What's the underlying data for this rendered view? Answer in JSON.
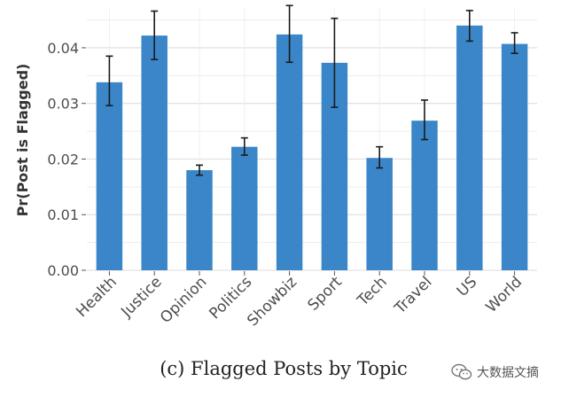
{
  "chart_data": {
    "type": "bar",
    "title": "",
    "xlabel": "",
    "ylabel": "Pr(Post is Flagged)",
    "categories": [
      "Health",
      "Justice",
      "Opinion",
      "Politics",
      "Showbiz",
      "Sport",
      "Tech",
      "Travel",
      "US",
      "World"
    ],
    "values": [
      0.0338,
      0.0422,
      0.018,
      0.0222,
      0.0424,
      0.0373,
      0.0202,
      0.0269,
      0.044,
      0.0407
    ],
    "error_low": [
      0.0296,
      0.0379,
      0.0171,
      0.0207,
      0.0374,
      0.0293,
      0.0184,
      0.0235,
      0.0412,
      0.039
    ],
    "error_high": [
      0.0385,
      0.0466,
      0.0189,
      0.0238,
      0.0476,
      0.0453,
      0.0222,
      0.0306,
      0.0467,
      0.0427
    ],
    "ylim": [
      0,
      0.047
    ],
    "yticks": [
      0.0,
      0.01,
      0.02,
      0.03,
      0.04
    ],
    "ytick_labels": [
      "0.00",
      "0.01",
      "0.02",
      "0.03",
      "0.04"
    ],
    "bar_color": "#3a86c8",
    "error_bar_color": "#1a1a1a",
    "grid": true,
    "legend": "none"
  },
  "caption": "(c) Flagged Posts by Topic",
  "watermark": {
    "icon": "wechat-icon",
    "text": "大数据文摘"
  }
}
